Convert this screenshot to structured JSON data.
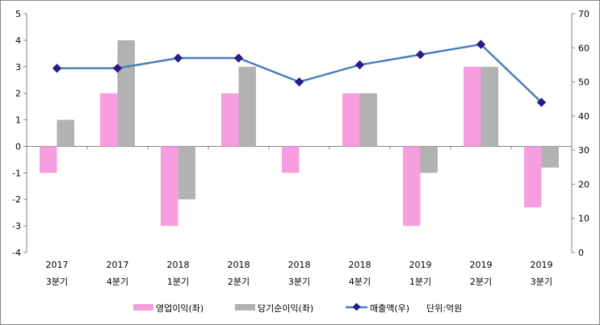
{
  "chart_data": {
    "type": "bar+line",
    "categories": [
      [
        "2017",
        "3분기"
      ],
      [
        "2017",
        "4분기"
      ],
      [
        "2018",
        "1분기"
      ],
      [
        "2018",
        "2분기"
      ],
      [
        "2018",
        "3분기"
      ],
      [
        "2018",
        "4분기"
      ],
      [
        "2019",
        "1분기"
      ],
      [
        "2019",
        "2분기"
      ],
      [
        "2019",
        "3분기"
      ]
    ],
    "series": [
      {
        "name": "영업이익(좌)",
        "type": "bar",
        "axis": "left",
        "color": "#f79ee0",
        "values": [
          -1,
          2,
          -3,
          2,
          -1,
          2,
          -3,
          3,
          -2.3
        ]
      },
      {
        "name": "당기순이익(좌)",
        "type": "bar",
        "axis": "left",
        "color": "#b2b2b2",
        "values": [
          1,
          4,
          -2,
          3,
          0,
          2,
          -1,
          3,
          -0.8
        ]
      },
      {
        "name": "매출액(우)",
        "type": "line",
        "axis": "right",
        "color": "#4a7ebb",
        "marker_color": "#2a1a8a",
        "values": [
          54,
          54,
          57,
          57,
          50,
          55,
          58,
          61,
          44
        ]
      }
    ],
    "left_axis": {
      "ylim": [
        -4,
        5
      ],
      "ticks": [
        "5",
        "4",
        "3",
        "2",
        "1",
        "0",
        "-1",
        "-2",
        "-3",
        "-4"
      ]
    },
    "right_axis": {
      "ylim": [
        0,
        70
      ],
      "ticks": [
        "70",
        "60",
        "50",
        "40",
        "30",
        "20",
        "10",
        "0"
      ]
    },
    "unit_note": "단위:억원",
    "legend": "bottom"
  }
}
